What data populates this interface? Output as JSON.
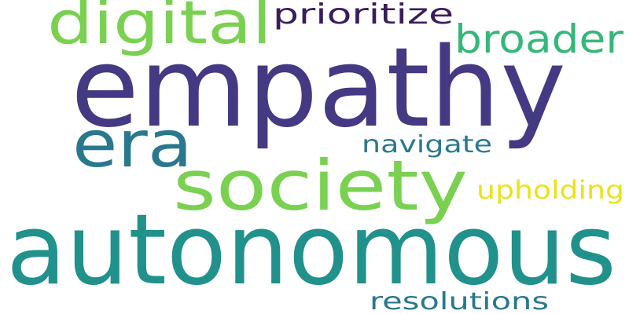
{
  "words": [
    {
      "text": "empathy",
      "color": "#443983"
    },
    {
      "text": "autonomous",
      "color": "#21918c"
    },
    {
      "text": "society",
      "color": "#7ad151"
    },
    {
      "text": "digital",
      "color": "#7ad151"
    },
    {
      "text": "era",
      "color": "#2a788e"
    },
    {
      "text": "broader",
      "color": "#35b779"
    },
    {
      "text": "prioritize",
      "color": "#3b1c5a"
    },
    {
      "text": "navigate",
      "color": "#2a788e"
    },
    {
      "text": "upholding",
      "color": "#e8e419"
    },
    {
      "text": "resolutions",
      "color": "#2a788e"
    }
  ]
}
